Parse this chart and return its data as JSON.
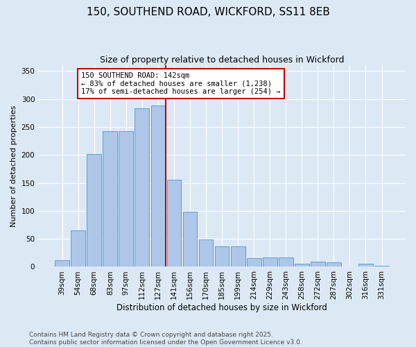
{
  "title": "150, SOUTHEND ROAD, WICKFORD, SS11 8EB",
  "subtitle": "Size of property relative to detached houses in Wickford",
  "xlabel": "Distribution of detached houses by size in Wickford",
  "ylabel": "Number of detached properties",
  "categories": [
    "39sqm",
    "54sqm",
    "68sqm",
    "83sqm",
    "97sqm",
    "112sqm",
    "127sqm",
    "141sqm",
    "156sqm",
    "170sqm",
    "185sqm",
    "199sqm",
    "214sqm",
    "229sqm",
    "243sqm",
    "258sqm",
    "272sqm",
    "287sqm",
    "302sqm",
    "316sqm",
    "331sqm"
  ],
  "values": [
    12,
    65,
    201,
    243,
    243,
    283,
    288,
    155,
    99,
    49,
    37,
    37,
    15,
    17,
    17,
    5,
    9,
    8,
    0,
    5,
    2
  ],
  "bar_color": "#aec6e8",
  "bar_edge_color": "#5a9fd4",
  "vline_color": "#cc0000",
  "annotation_text": "150 SOUTHEND ROAD: 142sqm\n← 83% of detached houses are smaller (1,238)\n17% of semi-detached houses are larger (254) →",
  "annotation_box_color": "#cc0000",
  "ylim": [
    0,
    360
  ],
  "yticks": [
    0,
    50,
    100,
    150,
    200,
    250,
    300,
    350
  ],
  "bg_color": "#dce9f5",
  "plot_bg_color": "#dce9f5",
  "footer": "Contains HM Land Registry data © Crown copyright and database right 2025.\nContains public sector information licensed under the Open Government Licence v3.0.",
  "title_fontsize": 11,
  "subtitle_fontsize": 9,
  "xlabel_fontsize": 8.5,
  "ylabel_fontsize": 8,
  "footer_fontsize": 6.5,
  "annot_fontsize": 7.5,
  "tick_fontsize": 7.5
}
